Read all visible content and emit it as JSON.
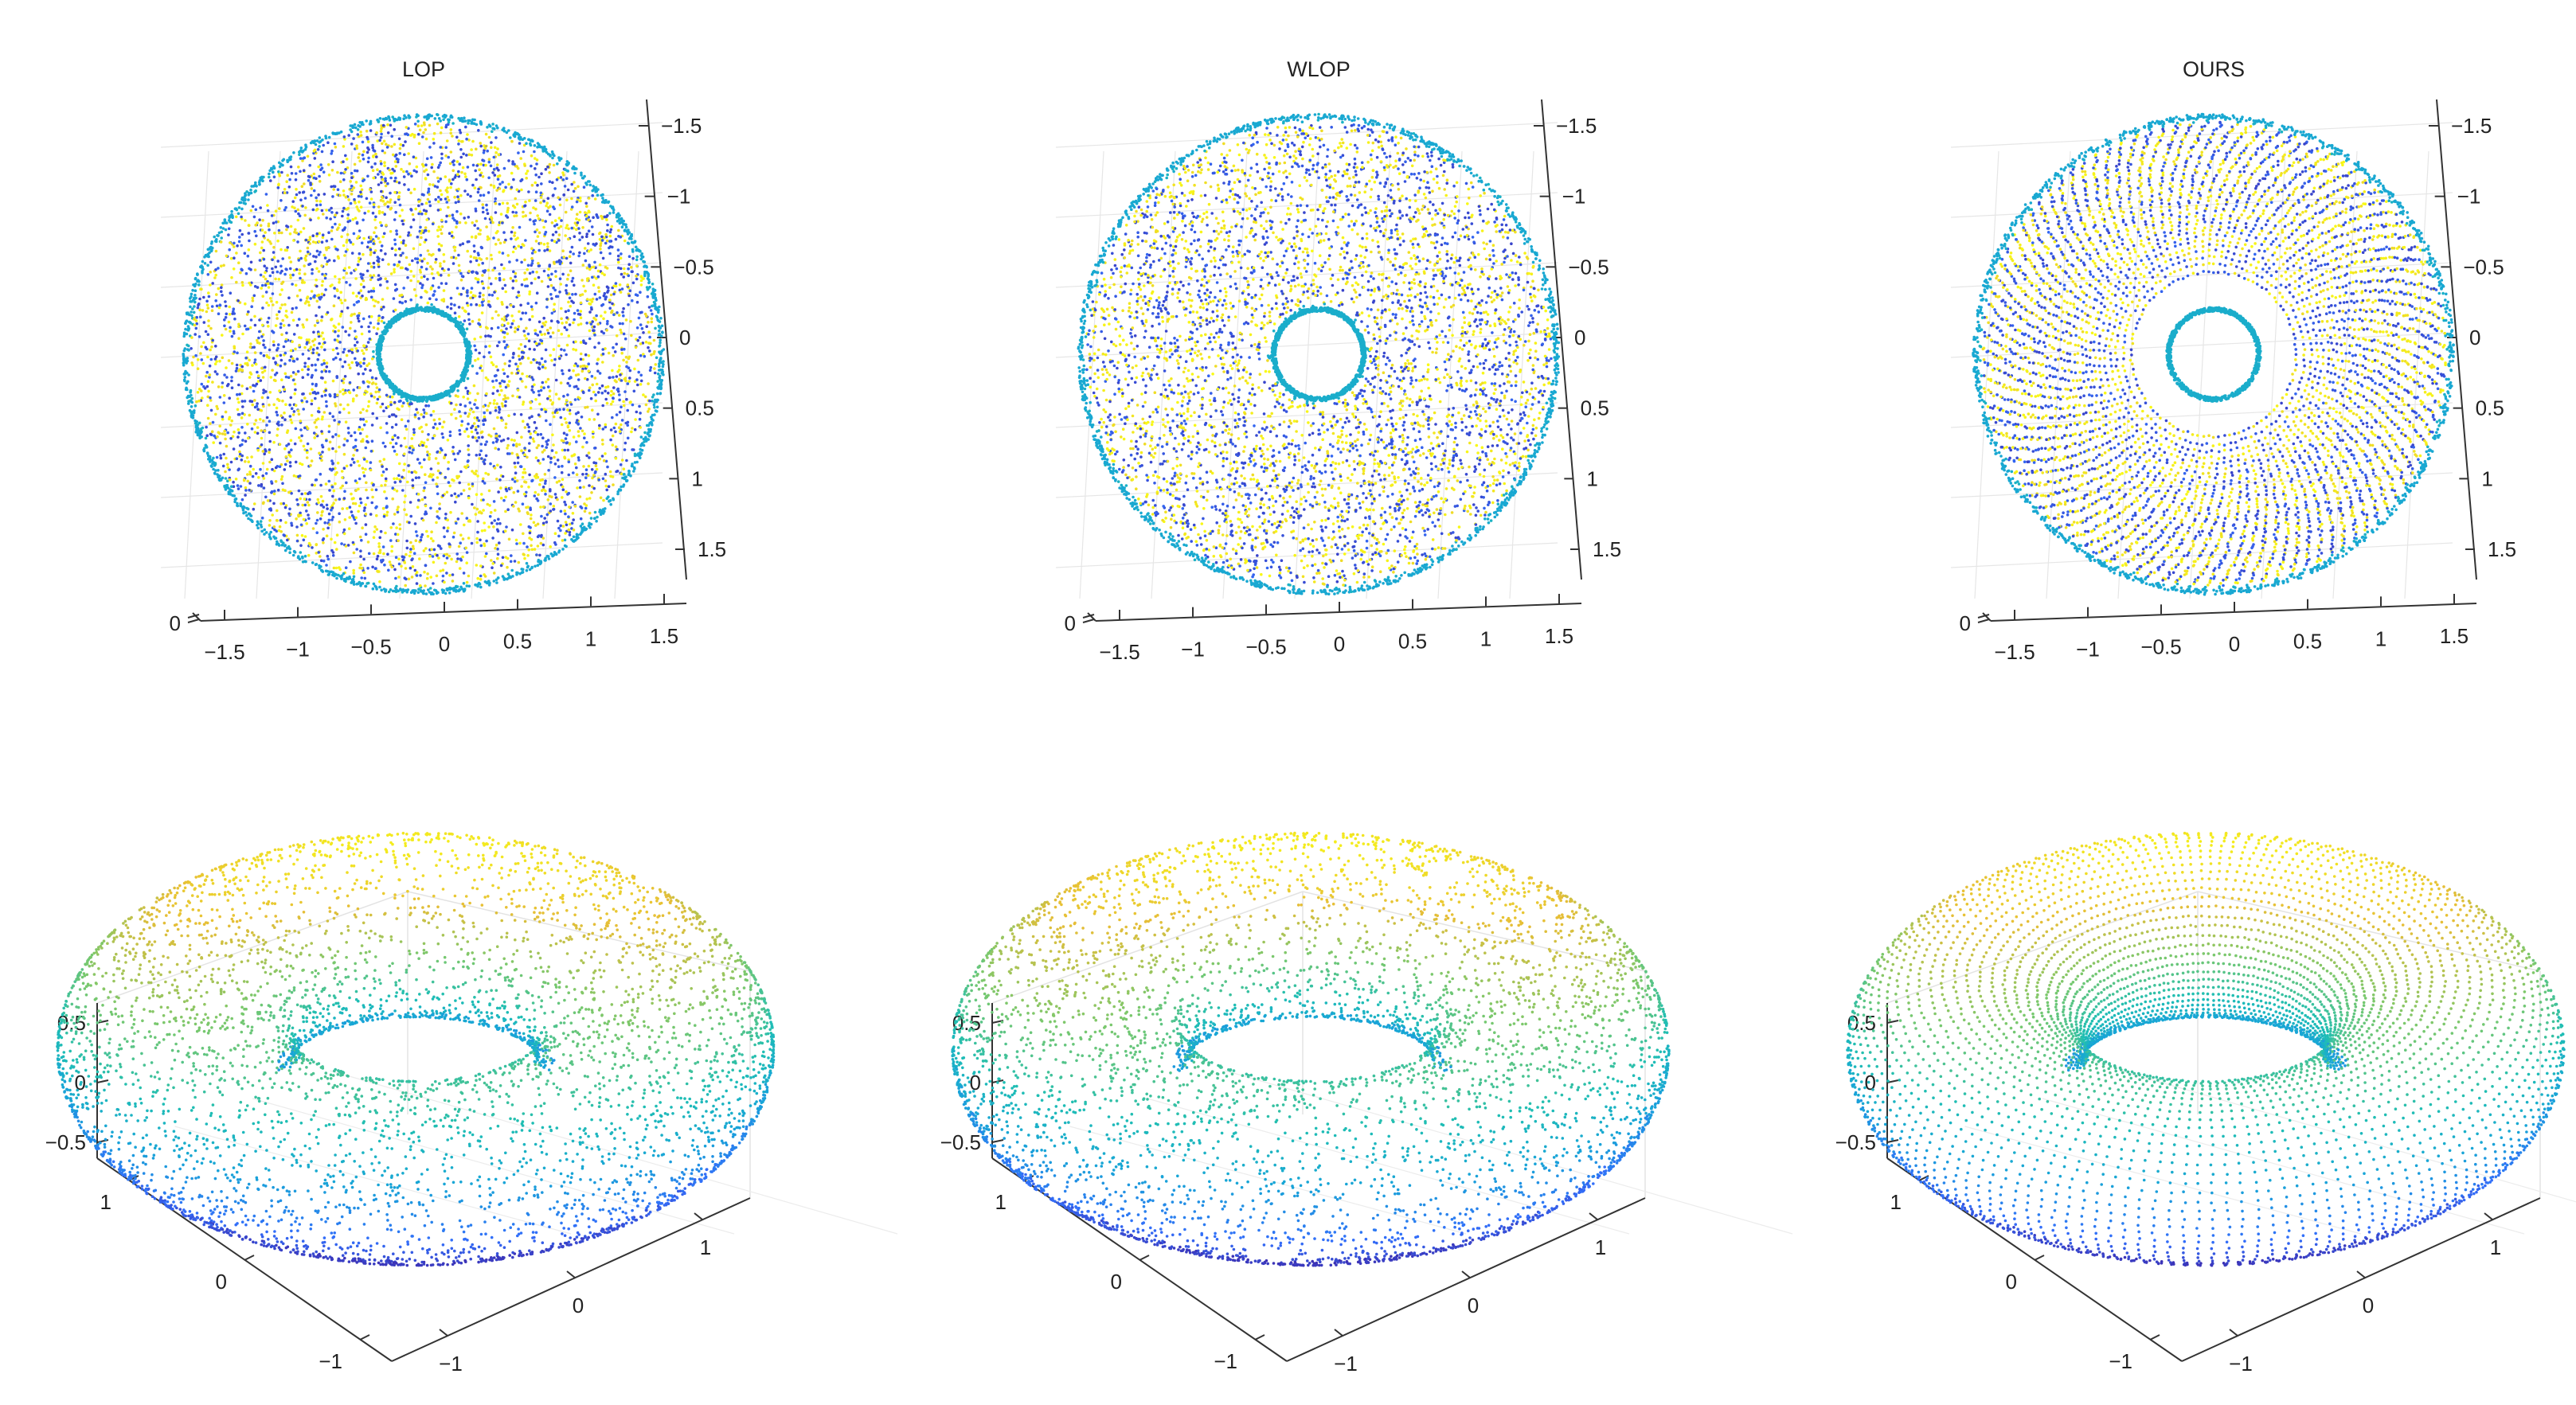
{
  "chart_data": [
    {
      "type": "scatter",
      "view": "top",
      "title": "LOP",
      "xticks": [
        "−1.5",
        "−1",
        "−0.5",
        "0",
        "0.5",
        "1",
        "1.5"
      ],
      "yticks": [
        "−1.5",
        "−1",
        "−0.5",
        "0",
        "0.5",
        "1",
        "1.5"
      ],
      "zticks": [
        "0"
      ],
      "xlim": [
        -1.5,
        1.5
      ],
      "ylim": [
        -1.5,
        1.5
      ],
      "grid": true,
      "sampling": "random",
      "colormap": [
        "#3e26a8",
        "#1fb1c4",
        "#f9fb15"
      ]
    },
    {
      "type": "scatter",
      "view": "top",
      "title": "WLOP",
      "xticks": [
        "−1.5",
        "−1",
        "−0.5",
        "0",
        "0.5",
        "1",
        "1.5"
      ],
      "yticks": [
        "−1.5",
        "−1",
        "−0.5",
        "0",
        "0.5",
        "1",
        "1.5"
      ],
      "zticks": [
        "0"
      ],
      "xlim": [
        -1.5,
        1.5
      ],
      "ylim": [
        -1.5,
        1.5
      ],
      "grid": true,
      "sampling": "random",
      "colormap": [
        "#3e26a8",
        "#1fb1c4",
        "#f9fb15"
      ]
    },
    {
      "type": "scatter",
      "view": "top",
      "title": "OURS",
      "xticks": [
        "−1.5",
        "−1",
        "−0.5",
        "0",
        "0.5",
        "1",
        "1.5"
      ],
      "yticks": [
        "−1.5",
        "−1",
        "−0.5",
        "0",
        "0.5",
        "1",
        "1.5"
      ],
      "zticks": [
        "0"
      ],
      "xlim": [
        -1.5,
        1.5
      ],
      "ylim": [
        -1.5,
        1.5
      ],
      "grid": true,
      "sampling": "uniform",
      "colormap": [
        "#3e26a8",
        "#1fb1c4",
        "#f9fb15"
      ]
    },
    {
      "type": "scatter",
      "view": "oblique",
      "title": "",
      "xticks": [
        "−1",
        "0",
        "1"
      ],
      "yticks": [
        "−1",
        "0",
        "1"
      ],
      "zticks": [
        "0.5",
        "0",
        "−0.5"
      ],
      "zlim": [
        -0.5,
        0.5
      ],
      "grid": true,
      "sampling": "random",
      "colormap": [
        "#3e26a8",
        "#1fb1c4",
        "#f9fb15"
      ]
    },
    {
      "type": "scatter",
      "view": "oblique",
      "title": "",
      "xticks": [
        "−1",
        "0",
        "1"
      ],
      "yticks": [
        "−1",
        "0",
        "1"
      ],
      "zticks": [
        "0.5",
        "0",
        "−0.5"
      ],
      "zlim": [
        -0.5,
        0.5
      ],
      "grid": true,
      "sampling": "random",
      "colormap": [
        "#3e26a8",
        "#1fb1c4",
        "#f9fb15"
      ]
    },
    {
      "type": "scatter",
      "view": "oblique",
      "title": "",
      "xticks": [
        "−1",
        "0",
        "1"
      ],
      "yticks": [
        "−1",
        "0",
        "1"
      ],
      "zticks": [
        "0.5",
        "0",
        "−0.5"
      ],
      "zlim": [
        -0.5,
        0.5
      ],
      "grid": true,
      "sampling": "uniform",
      "colormap": [
        "#3e26a8",
        "#1fb1c4",
        "#f9fb15"
      ]
    }
  ]
}
